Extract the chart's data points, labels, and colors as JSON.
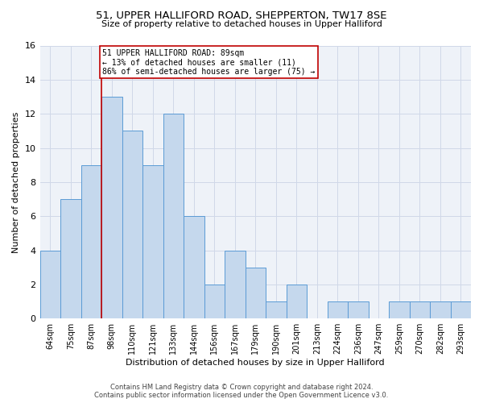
{
  "title": "51, UPPER HALLIFORD ROAD, SHEPPERTON, TW17 8SE",
  "subtitle": "Size of property relative to detached houses in Upper Halliford",
  "xlabel": "Distribution of detached houses by size in Upper Halliford",
  "ylabel": "Number of detached properties",
  "categories": [
    "64sqm",
    "75sqm",
    "87sqm",
    "98sqm",
    "110sqm",
    "121sqm",
    "133sqm",
    "144sqm",
    "156sqm",
    "167sqm",
    "179sqm",
    "190sqm",
    "201sqm",
    "213sqm",
    "224sqm",
    "236sqm",
    "247sqm",
    "259sqm",
    "270sqm",
    "282sqm",
    "293sqm"
  ],
  "values": [
    4,
    7,
    9,
    13,
    11,
    9,
    12,
    6,
    2,
    4,
    3,
    1,
    2,
    0,
    1,
    1,
    0,
    1,
    1,
    1,
    1
  ],
  "bar_color": "#c5d8ed",
  "bar_edgecolor": "#5b9bd5",
  "reference_line_color": "#c00000",
  "annotation_text": "51 UPPER HALLIFORD ROAD: 89sqm\n← 13% of detached houses are smaller (11)\n86% of semi-detached houses are larger (75) →",
  "annotation_box_color": "white",
  "annotation_box_edgecolor": "#c00000",
  "ylim": [
    0,
    16
  ],
  "yticks": [
    0,
    2,
    4,
    6,
    8,
    10,
    12,
    14,
    16
  ],
  "footer_line1": "Contains HM Land Registry data © Crown copyright and database right 2024.",
  "footer_line2": "Contains public sector information licensed under the Open Government Licence v3.0.",
  "grid_color": "#d0d8e8",
  "background_color": "#eef2f8"
}
